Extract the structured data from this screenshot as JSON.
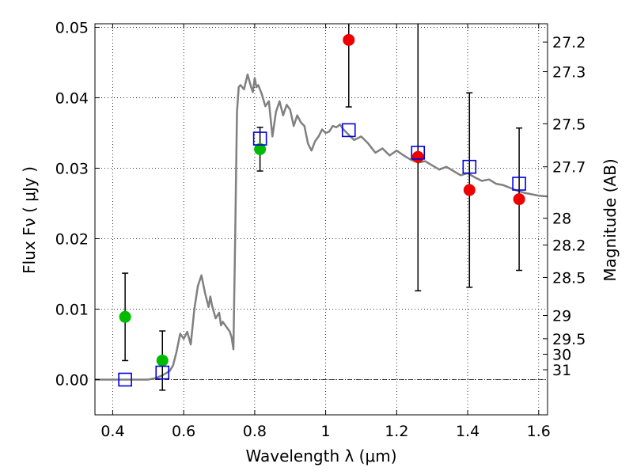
{
  "chart_data": {
    "type": "scatter",
    "title": "",
    "xlabel": "Wavelength  λ (μm)",
    "ylabel": "Flux  Fν  ( μJy )",
    "y2label": "Magnitude (AB)",
    "xlim": [
      0.35,
      1.625
    ],
    "ylim": [
      -0.005,
      0.0505
    ],
    "grid": true,
    "grid_style": "dotted",
    "zero_line": true,
    "xticks": [
      0.4,
      0.6,
      0.8,
      1.0,
      1.2,
      1.4,
      1.6
    ],
    "xtick_labels": [
      "0.4",
      "0.6",
      "0.8",
      "1",
      "1.2",
      "1.4",
      "1.6"
    ],
    "yticks": [
      0.0,
      0.01,
      0.02,
      0.03,
      0.04,
      0.05
    ],
    "ytick_labels": [
      "0.00",
      "0.01",
      "0.02",
      "0.03",
      "0.04",
      "0.05"
    ],
    "y2ticks": [
      {
        "label": "27.2",
        "flux": 0.0479
      },
      {
        "label": "27.3",
        "flux": 0.0437
      },
      {
        "label": "27.5",
        "flux": 0.0363
      },
      {
        "label": "27.7",
        "flux": 0.0302
      },
      {
        "label": "28",
        "flux": 0.0229
      },
      {
        "label": "28.2",
        "flux": 0.0191
      },
      {
        "label": "28.5",
        "flux": 0.0145
      },
      {
        "label": "29",
        "flux": 0.0091
      },
      {
        "label": "29.5",
        "flux": 0.0058
      },
      {
        "label": "30",
        "flux": 0.0036
      },
      {
        "label": "31",
        "flux": 0.0014
      }
    ],
    "colors": {
      "template": "#808080",
      "green": "#00bb00",
      "red": "#ee0000",
      "model": "#0000dd",
      "errorbar": "#000000"
    },
    "series": [
      {
        "kind": "template",
        "x": [
          0.35,
          0.4,
          0.45,
          0.5,
          0.52,
          0.54,
          0.56,
          0.57,
          0.58,
          0.59,
          0.6,
          0.61,
          0.62,
          0.63,
          0.64,
          0.65,
          0.66,
          0.67,
          0.675,
          0.68,
          0.69,
          0.7,
          0.705,
          0.71,
          0.72,
          0.73,
          0.735,
          0.74,
          0.745,
          0.75,
          0.755,
          0.76,
          0.77,
          0.78,
          0.79,
          0.795,
          0.8,
          0.805,
          0.81,
          0.82,
          0.83,
          0.84,
          0.85,
          0.86,
          0.87,
          0.88,
          0.89,
          0.9,
          0.91,
          0.92,
          0.93,
          0.94,
          0.95,
          0.96,
          0.97,
          0.98,
          0.99,
          1.0,
          1.01,
          1.02,
          1.03,
          1.04,
          1.05,
          1.06,
          1.08,
          1.1,
          1.12,
          1.14,
          1.16,
          1.18,
          1.2,
          1.22,
          1.24,
          1.26,
          1.28,
          1.3,
          1.32,
          1.34,
          1.36,
          1.38,
          1.4,
          1.42,
          1.44,
          1.46,
          1.48,
          1.5,
          1.52,
          1.54,
          1.56,
          1.58,
          1.6,
          1.625
        ],
        "y": [
          0.0,
          0.0,
          0.0,
          0.0,
          0.0002,
          0.0006,
          0.0012,
          0.002,
          0.004,
          0.0065,
          0.0058,
          0.0068,
          0.005,
          0.01,
          0.0133,
          0.0148,
          0.0123,
          0.0103,
          0.0118,
          0.0105,
          0.0087,
          0.0095,
          0.0077,
          0.0082,
          0.0075,
          0.0068,
          0.006,
          0.0043,
          0.02,
          0.038,
          0.0415,
          0.0418,
          0.0412,
          0.0433,
          0.0415,
          0.0408,
          0.0428,
          0.0415,
          0.0418,
          0.0405,
          0.0388,
          0.0395,
          0.0345,
          0.038,
          0.0395,
          0.0375,
          0.039,
          0.0383,
          0.036,
          0.0375,
          0.0365,
          0.036,
          0.0335,
          0.0325,
          0.0338,
          0.0345,
          0.0355,
          0.035,
          0.0352,
          0.036,
          0.0358,
          0.0362,
          0.0355,
          0.035,
          0.034,
          0.0345,
          0.0335,
          0.0322,
          0.0328,
          0.0318,
          0.0325,
          0.0318,
          0.0312,
          0.0308,
          0.031,
          0.0304,
          0.0298,
          0.0302,
          0.0296,
          0.029,
          0.0293,
          0.0287,
          0.0282,
          0.0284,
          0.0278,
          0.0276,
          0.0272,
          0.0268,
          0.0265,
          0.0263,
          0.0261,
          0.026
        ]
      },
      {
        "kind": "points-green",
        "x": [
          0.435,
          0.54,
          0.815
        ],
        "y": [
          0.0089,
          0.0027,
          0.0327
        ],
        "yerr": [
          0.0062,
          0.0042,
          0.0031
        ]
      },
      {
        "kind": "points-red",
        "x": [
          1.065,
          1.26,
          1.405,
          1.545
        ],
        "y": [
          0.0482,
          0.0316,
          0.0269,
          0.0256
        ],
        "yerr": [
          0.0095,
          0.019,
          0.0138,
          0.0101
        ]
      },
      {
        "kind": "model-squares",
        "x": [
          0.435,
          0.54,
          0.815,
          1.065,
          1.26,
          1.405,
          1.545
        ],
        "y": [
          0.0,
          0.001,
          0.0342,
          0.0354,
          0.0322,
          0.0302,
          0.0278
        ]
      }
    ]
  }
}
